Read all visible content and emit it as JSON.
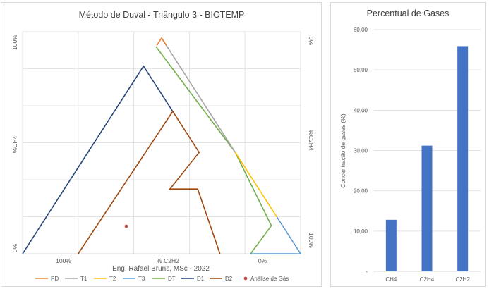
{
  "chart_data": [
    {
      "type": "scatter",
      "title": "Método de Duval - Triângulo 3 - BIOTEMP",
      "subtitle": "Eng. Rafael Bruns, MSc - 2022",
      "axes": {
        "ch4_label": "%CH4",
        "c2h4_label": "%C2H4",
        "c2h2_label": "% C2H2",
        "ch4_ticks": [
          "100%",
          "0%"
        ],
        "c2h4_ticks": [
          "0%",
          "100%"
        ],
        "c2h2_ticks": [
          "100%",
          "0%"
        ]
      },
      "grid": true,
      "legend_position": "bottom",
      "legend": [
        {
          "name": "PD",
          "color": "#ed7d31",
          "kind": "line"
        },
        {
          "name": "T1",
          "color": "#a5a5a5",
          "kind": "line"
        },
        {
          "name": "T2",
          "color": "#ffc000",
          "kind": "line"
        },
        {
          "name": "T3",
          "color": "#5b9bd5",
          "kind": "line"
        },
        {
          "name": "DT",
          "color": "#70ad47",
          "kind": "line"
        },
        {
          "name": "D1",
          "color": "#264478",
          "kind": "line"
        },
        {
          "name": "D2",
          "color": "#9e480e",
          "kind": "line"
        },
        {
          "name": "Análise de Gás",
          "color": "#c0504d",
          "kind": "marker"
        }
      ],
      "zone_boundaries": {
        "PD": [
          [
            0.975,
            0
          ],
          [
            1.0,
            0
          ],
          [
            0.975,
            0.025
          ]
        ],
        "T1": [
          [
            1.0,
            0
          ],
          [
            0.46,
            0.54
          ]
        ],
        "T2": [
          [
            0.46,
            0.54
          ],
          [
            0.14,
            0.86
          ]
        ],
        "T3": [
          [
            0.14,
            0.86
          ],
          [
            0,
            1.0
          ],
          [
            0.0,
            0.67
          ]
        ],
        "DT": [
          [
            0.95,
            0.0
          ],
          [
            0.46,
            0.54
          ],
          [
            0.14,
            0.86
          ],
          [
            0.0,
            0.82
          ]
        ],
        "D1": [
          [
            0,
            0
          ],
          [
            0.86,
            0.0
          ],
          [
            0.64,
            0.0
          ]
        ],
        "D2": [
          [
            0.0,
            0.23
          ],
          [
            0.64,
            0.0
          ],
          [
            0.46,
            0.0
          ],
          [
            0.46,
            0.28
          ],
          [
            0.3,
            0.25
          ],
          [
            0.3,
            0.47
          ],
          [
            0.0,
            0.59
          ]
        ]
      },
      "gas_point": {
        "CH4": 0.13,
        "C2H4": 0.31,
        "C2H2": 0.56
      }
    },
    {
      "type": "bar",
      "title": "Percentual de Gases",
      "ylabel": "Concentração de gases (%)",
      "categories": [
        "CH4",
        "C2H4",
        "C2H2"
      ],
      "values": [
        12.8,
        31.2,
        55.9
      ],
      "ylim": [
        0,
        60
      ],
      "yticks": [
        "-",
        "10,00",
        "20,00",
        "30,00",
        "40,00",
        "50,00",
        "60,00"
      ],
      "bar_color": "#4472c4",
      "grid": true
    }
  ]
}
